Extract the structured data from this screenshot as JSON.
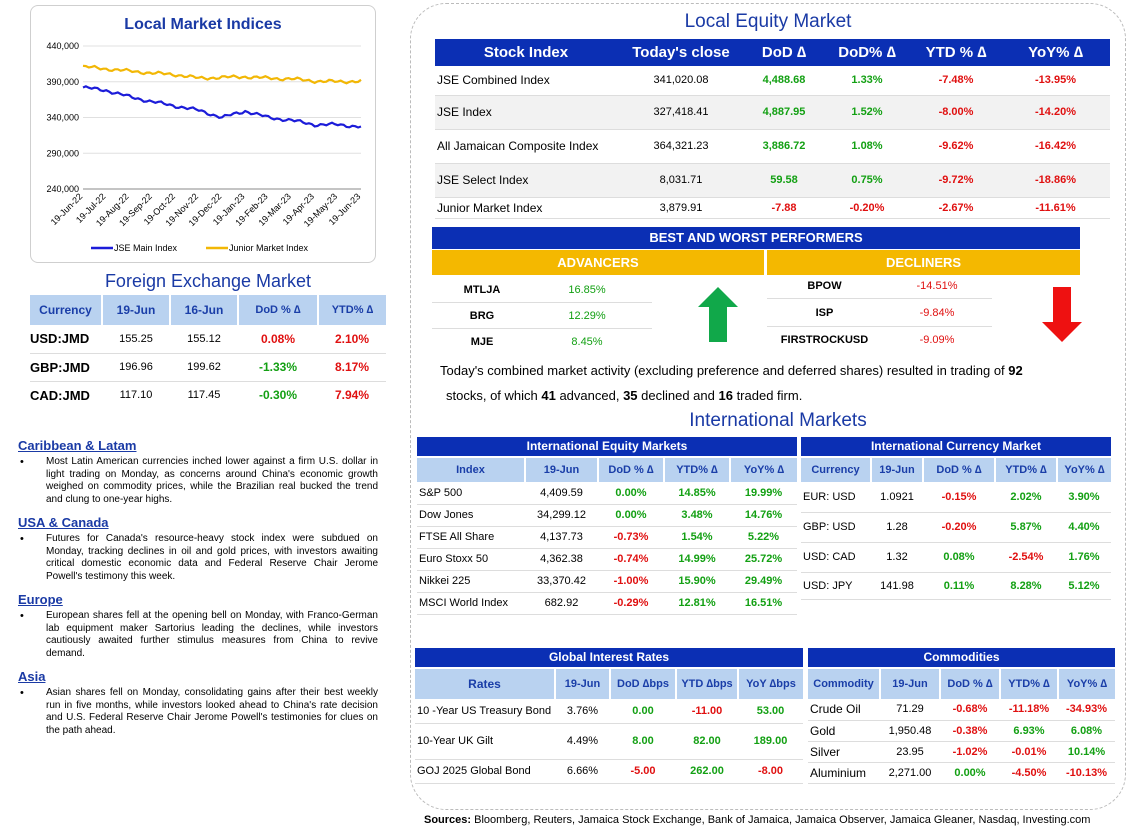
{
  "indices_chart": {
    "title": "Local Market Indices",
    "chart_data": {
      "type": "line",
      "title": "Local Market Indices",
      "ylim": [
        240000,
        440000
      ],
      "yticks": [
        "440,000",
        "390,000",
        "340,000",
        "290,000",
        "240,000"
      ],
      "xticks": [
        "19-Jun-22",
        "19-Jul-22",
        "19-Aug-22",
        "19-Sep-22",
        "19-Oct-22",
        "19-Nov-22",
        "19-Dec-22",
        "19-Jan-23",
        "19-Feb-23",
        "19-Mar-23",
        "19-Apr-23",
        "19-May-23",
        "19-Jun-23"
      ],
      "series": [
        {
          "name": "JSE Main Index",
          "color": "#1c1cd9",
          "values": [
            382000,
            378000,
            369000,
            362000,
            356000,
            350000,
            340000,
            349000,
            340000,
            336000,
            330000,
            330000,
            327000
          ]
        },
        {
          "name": "Junior Market Index",
          "color": "#f2b705",
          "values": [
            411000,
            408000,
            405000,
            402000,
            400000,
            395000,
            396000,
            397000,
            395000,
            394000,
            391000,
            390000,
            391000
          ]
        }
      ],
      "legend": "bottom"
    }
  },
  "fx": {
    "title": "Foreign Exchange Market",
    "headers": [
      "Currency",
      "19-Jun",
      "16-Jun",
      "DoD % ∆",
      "YTD% ∆"
    ],
    "rows": [
      {
        "cur": "USD:JMD",
        "a": "155.25",
        "b": "155.12",
        "dod": "0.08%",
        "ytd": "2.10%"
      },
      {
        "cur": "GBP:JMD",
        "a": "196.96",
        "b": "199.62",
        "dod": "-1.33%",
        "ytd": "8.17%"
      },
      {
        "cur": "CAD:JMD",
        "a": "117.10",
        "b": "117.45",
        "dod": "-0.30%",
        "ytd": "7.94%"
      }
    ]
  },
  "news": [
    {
      "head": "Caribbean & Latam",
      "text": "Most Latin American currencies inched lower against a firm U.S. dollar in light trading on Monday, as concerns around China's economic growth weighed on commodity prices, while the Brazilian real bucked the trend and clung to one-year highs."
    },
    {
      "head": "USA & Canada",
      "text": "Futures for Canada's resource-heavy stock index were subdued on Monday, tracking declines in oil and gold prices, with investors awaiting critical domestic economic data and Federal Reserve Chair Jerome Powell's testimony this week."
    },
    {
      "head": "Europe",
      "text": "European shares fell at the opening bell on Monday, with Franco-German lab equipment maker Sartorius leading the declines, while investors cautiously awaited further stimulus measures from China to revive demand."
    },
    {
      "head": "Asia",
      "text": "Asian shares fell on Monday, consolidating gains after their best weekly run in five months, while investors looked ahead to China's rate decision and U.S. Federal Reserve Chair Jerome Powell's testimonies for clues on the path ahead."
    }
  ],
  "equity": {
    "title": "Local Equity Market",
    "headers": [
      "Stock Index",
      "Today's close",
      "DoD ∆",
      "DoD% ∆",
      "YTD % ∆",
      "YoY% ∆"
    ],
    "rows": [
      {
        "name": "JSE Combined Index",
        "close": "341,020.08",
        "dod": "4,488.68",
        "dodp": "1.33%",
        "ytd": "-7.48%",
        "yoy": "-13.95%"
      },
      {
        "name": "JSE Index",
        "close": "327,418.41",
        "dod": "4,887.95",
        "dodp": "1.52%",
        "ytd": "-8.00%",
        "yoy": "-14.20%"
      },
      {
        "name": "All Jamaican Composite Index",
        "close": "364,321.23",
        "dod": "3,886.72",
        "dodp": "1.08%",
        "ytd": "-9.62%",
        "yoy": "-16.42%"
      },
      {
        "name": "JSE Select Index",
        "close": "8,031.71",
        "dod": "59.58",
        "dodp": "0.75%",
        "ytd": "-9.72%",
        "yoy": "-18.86%"
      },
      {
        "name": "Junior Market Index",
        "close": "3,879.91",
        "dod": "-7.88",
        "dodp": "-0.20%",
        "ytd": "-2.67%",
        "yoy": "-11.61%"
      }
    ]
  },
  "performers": {
    "title": "BEST AND WORST PERFORMERS",
    "adv_label": "ADVANCERS",
    "dec_label": "DECLINERS",
    "advancers": [
      {
        "t": "MTLJA",
        "v": "16.85%"
      },
      {
        "t": "BRG",
        "v": "12.29%"
      },
      {
        "t": "MJE",
        "v": "8.45%"
      }
    ],
    "decliners": [
      {
        "t": "BPOW",
        "v": "-14.51%"
      },
      {
        "t": "ISP",
        "v": "-9.84%"
      },
      {
        "t": "FIRSTROCKUSD",
        "v": "-9.09%"
      }
    ]
  },
  "summary": {
    "p1": "Today's combined market activity (excluding preference and deferred shares) resulted in trading of ",
    "n1": "92",
    "p2": "stocks, of which ",
    "n2": "41",
    "p3": " advanced, ",
    "n3": "35",
    "p4": " declined and ",
    "n4": "16",
    "p5": " traded firm."
  },
  "intl": {
    "title": "International Markets",
    "eq_title": "International Equity Markets",
    "eq_headers": [
      "Index",
      "19-Jun",
      "DoD % ∆",
      "YTD% ∆",
      "YoY% ∆"
    ],
    "eq_rows": [
      {
        "n": "S&P 500",
        "v": "4,409.59",
        "d": "0.00%",
        "y": "14.85%",
        "yy": "19.99%"
      },
      {
        "n": "Dow Jones",
        "v": "34,299.12",
        "d": "0.00%",
        "y": "3.48%",
        "yy": "14.76%"
      },
      {
        "n": "FTSE All Share",
        "v": "4,137.73",
        "d": "-0.73%",
        "y": "1.54%",
        "yy": "5.22%"
      },
      {
        "n": "Euro Stoxx 50",
        "v": "4,362.38",
        "d": "-0.74%",
        "y": "14.99%",
        "yy": "25.72%"
      },
      {
        "n": "Nikkei 225",
        "v": "33,370.42",
        "d": "-1.00%",
        "y": "15.90%",
        "yy": "29.49%"
      },
      {
        "n": "MSCI World Index",
        "v": "682.92",
        "d": "-0.29%",
        "y": "12.81%",
        "yy": "16.51%"
      }
    ],
    "cur_title": "International Currency Market",
    "cur_headers": [
      "Currency",
      "19-Jun",
      "DoD % ∆",
      "YTD% ∆",
      "YoY% ∆"
    ],
    "cur_rows": [
      {
        "n": "EUR: USD",
        "v": "1.0921",
        "d": "-0.15%",
        "y": "2.02%",
        "yy": "3.90%"
      },
      {
        "n": "GBP: USD",
        "v": "1.28",
        "d": "-0.20%",
        "y": "5.87%",
        "yy": "4.40%"
      },
      {
        "n": "USD: CAD",
        "v": "1.32",
        "d": "0.08%",
        "y": "-2.54%",
        "yy": "1.76%"
      },
      {
        "n": "USD: JPY",
        "v": "141.98",
        "d": "0.11%",
        "y": "8.28%",
        "yy": "5.12%"
      }
    ]
  },
  "rates": {
    "title": "Global Interest Rates",
    "headers": [
      "Rates",
      "19-Jun",
      "DoD ∆bps",
      "YTD ∆bps",
      "YoY ∆bps"
    ],
    "rows": [
      {
        "n": "10 -Year US Treasury Bond",
        "v": "3.76%",
        "d": "0.00",
        "y": "-11.00",
        "yy": "53.00"
      },
      {
        "n": "10-Year UK Gilt",
        "v": "4.49%",
        "d": "8.00",
        "y": "82.00",
        "yy": "189.00"
      },
      {
        "n": "GOJ 2025 Global Bond",
        "v": "6.66%",
        "d": "-5.00",
        "y": "262.00",
        "yy": "-8.00"
      }
    ]
  },
  "commod": {
    "title": "Commodities",
    "headers": [
      "Commodity",
      "19-Jun",
      "DoD % ∆",
      "YTD% ∆",
      "YoY% ∆"
    ],
    "rows": [
      {
        "n": "Crude Oil",
        "v": "71.29",
        "d": "-0.68%",
        "y": "-11.18%",
        "yy": "-34.93%"
      },
      {
        "n": "Gold",
        "v": "1,950.48",
        "d": "-0.38%",
        "y": "6.93%",
        "yy": "6.08%"
      },
      {
        "n": "Silver",
        "v": "23.95",
        "d": "-1.02%",
        "y": "-0.01%",
        "yy": "10.14%"
      },
      {
        "n": "Aluminium",
        "v": "2,271.00",
        "d": "0.00%",
        "y": "-4.50%",
        "yy": "-10.13%"
      }
    ]
  },
  "sources": {
    "label": "Sources:",
    "text": " Bloomberg, Reuters, Jamaica Stock Exchange, Bank of Jamaica, Jamaica Observer, Jamaica Gleaner, Nasdaq, Investing.com"
  },
  "colors": {
    "positive": "#13a013",
    "negative": "#e01010",
    "header_blue": "#0b2fb4",
    "header_light": "#b9d2f0",
    "gold": "#f4b800"
  }
}
